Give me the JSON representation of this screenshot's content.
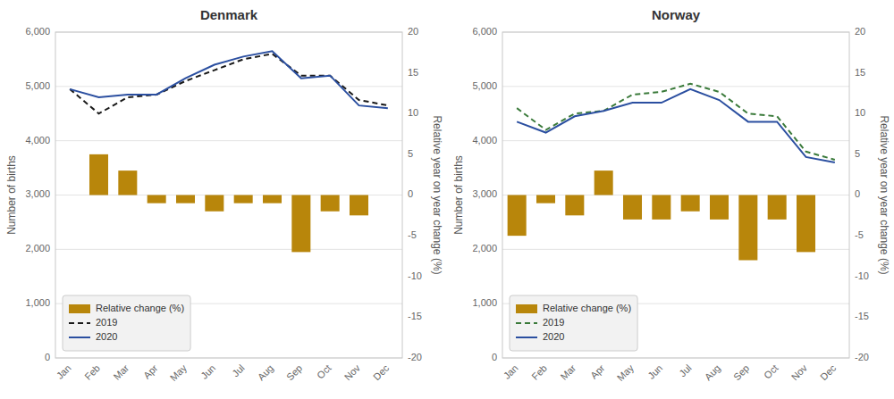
{
  "chart_data": [
    {
      "type": "bar",
      "title": "Denmark",
      "categories": [
        "Jan",
        "Feb",
        "Mar",
        "Apr",
        "May",
        "Jun",
        "Jul",
        "Aug",
        "Sep",
        "Oct",
        "Nov",
        "Dec"
      ],
      "series": [
        {
          "name": "Relative change (%)",
          "type": "bar",
          "axis": "y2",
          "color": "#B8860B",
          "values": [
            0,
            5,
            3,
            -1,
            -1,
            -2,
            -1,
            -1,
            -7,
            -2,
            -2.5,
            0
          ]
        },
        {
          "name": "2019",
          "type": "line",
          "line_style": "dashed",
          "color": "#1a1a1a",
          "values": [
            4950,
            4500,
            4800,
            4850,
            5100,
            5300,
            5500,
            5600,
            5200,
            5200,
            4750,
            4650
          ]
        },
        {
          "name": "2020",
          "type": "line",
          "line_style": "solid",
          "color": "#2b4fa0",
          "values": [
            4950,
            4800,
            4850,
            4850,
            5150,
            5400,
            5550,
            5650,
            5150,
            5200,
            4650,
            4600
          ]
        }
      ],
      "y_label": "Number of births",
      "y2_label": "Relative year on year change (%)",
      "ylim": [
        0,
        6000
      ],
      "yticks": [
        0,
        {
          "value": 1000,
          "label": "1,000"
        },
        {
          "value": 2000,
          "label": "2,000"
        },
        {
          "value": 3000,
          "label": "3,000"
        },
        {
          "value": 4000,
          "label": "4,000"
        },
        {
          "value": 5000,
          "label": "5,000"
        },
        {
          "value": 6000,
          "label": "6,000"
        }
      ],
      "y2lim": [
        -20,
        20
      ],
      "y2ticks": [
        -20,
        -15,
        -10,
        -5,
        0,
        5,
        10,
        15,
        20
      ],
      "grid": true,
      "legend": "lower left"
    },
    {
      "type": "bar",
      "title": "Norway",
      "categories": [
        "Jan",
        "Feb",
        "Mar",
        "Apr",
        "May",
        "Jun",
        "Jul",
        "Aug",
        "Sep",
        "Oct",
        "Nov",
        "Dec"
      ],
      "series": [
        {
          "name": "Relative change (%)",
          "type": "bar",
          "axis": "y2",
          "color": "#B8860B",
          "values": [
            -5,
            -1,
            -2.5,
            3,
            -3,
            -3,
            -2,
            -3,
            -8,
            -3,
            -7,
            0
          ]
        },
        {
          "name": "2019",
          "type": "line",
          "line_style": "dashed",
          "color": "#3a7a3a",
          "values": [
            4600,
            4200,
            4500,
            4550,
            4850,
            4900,
            5050,
            4900,
            4500,
            4450,
            3800,
            3650
          ]
        },
        {
          "name": "2020",
          "type": "line",
          "line_style": "solid",
          "color": "#2b4fa0",
          "values": [
            4350,
            4150,
            4450,
            4550,
            4700,
            4700,
            4950,
            4750,
            4350,
            4350,
            3700,
            3600
          ]
        }
      ],
      "y_label": "Number of births",
      "y2_label": "Relative year on year change (%)",
      "ylim": [
        0,
        6000
      ],
      "yticks": [
        0,
        {
          "value": 1000,
          "label": "1,000"
        },
        {
          "value": 2000,
          "label": "2,000"
        },
        {
          "value": 3000,
          "label": "3,000"
        },
        {
          "value": 4000,
          "label": "4,000"
        },
        {
          "value": 5000,
          "label": "5,000"
        },
        {
          "value": 6000,
          "label": "6,000"
        }
      ],
      "y2lim": [
        -20,
        20
      ],
      "y2ticks": [
        -20,
        -15,
        -10,
        -5,
        0,
        5,
        10,
        15,
        20
      ],
      "grid": true,
      "legend": "lower left"
    }
  ]
}
